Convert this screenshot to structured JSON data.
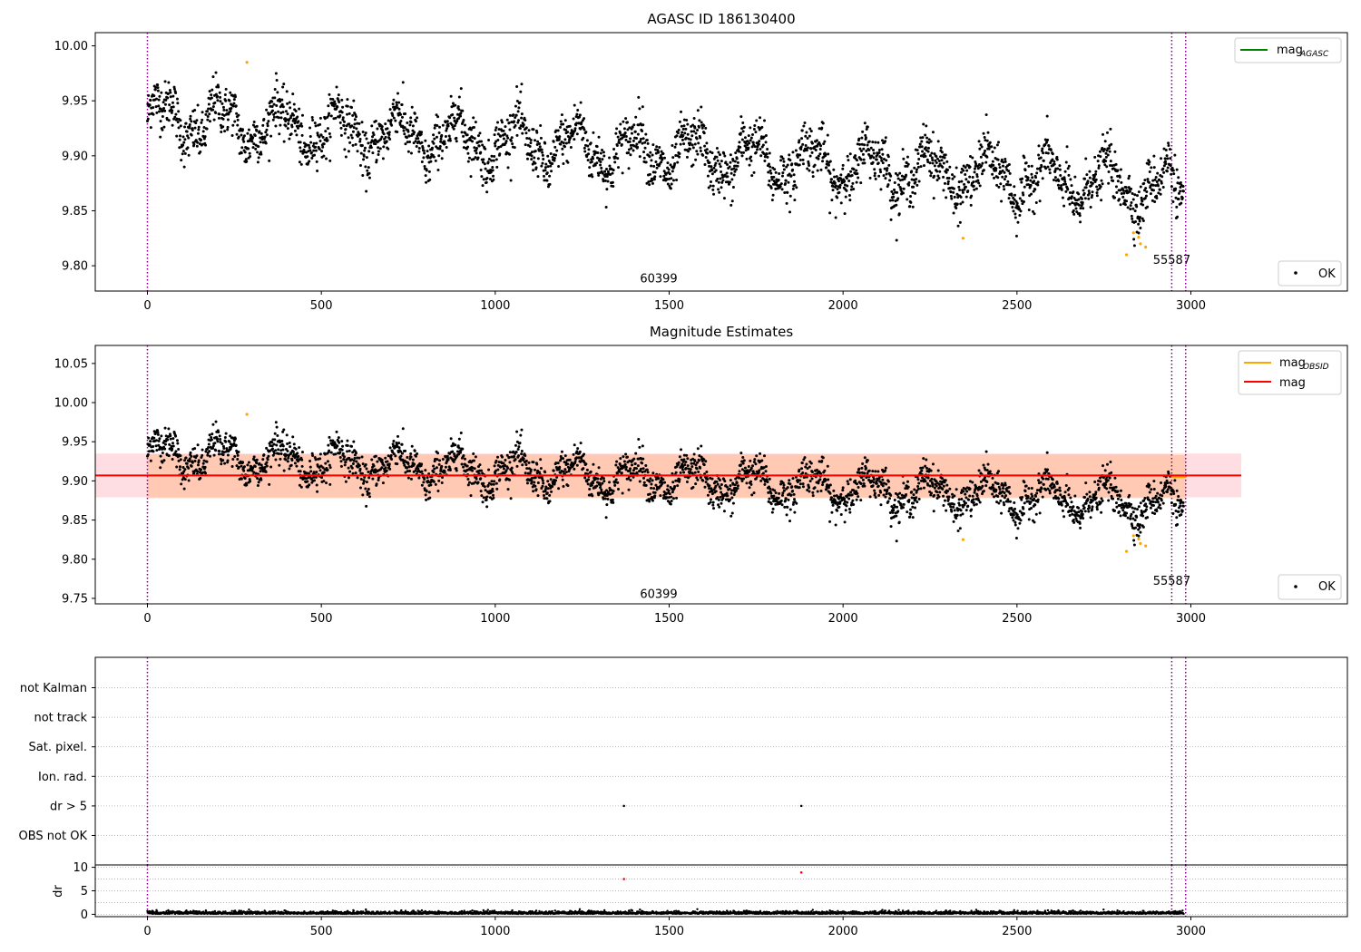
{
  "figure": {
    "top_title": "AGASC ID 186130400",
    "middle_title": "Magnitude Estimates"
  },
  "chart_data": [
    {
      "type": "scatter",
      "title": "AGASC ID 186130400",
      "xlabel": "",
      "ylabel": "",
      "xlim": [
        -150,
        3450
      ],
      "ylim": [
        9.777,
        10.012
      ],
      "xticks": [
        0,
        500,
        1000,
        1500,
        2000,
        2500,
        3000
      ],
      "yticks": [
        9.8,
        9.85,
        9.9,
        9.95,
        10.0
      ],
      "ytick_labels": [
        "9.80",
        "9.85",
        "9.90",
        "9.95",
        "10.00"
      ],
      "grid": false,
      "obsid_boundaries_x": [
        0,
        2945,
        2985
      ],
      "annotations": [
        {
          "text": "60399",
          "x": 1470,
          "y": 9.788
        },
        {
          "text": "55587",
          "x": 2945,
          "y": 9.805
        }
      ],
      "legend_top": {
        "position": "top-right",
        "entries": [
          {
            "label": "mag",
            "sub": "AGASC",
            "color": "#008000"
          }
        ]
      },
      "legend_bottom": {
        "position": "bottom-right",
        "entries": [
          {
            "label": "OK",
            "marker": "dot",
            "color": "#000000"
          }
        ]
      },
      "series": [
        {
          "name": "OK",
          "color": "#000000",
          "n_points": 2980,
          "x_range": [
            0,
            2985
          ],
          "note_points": "dense per-sample magnitude estimates, ~9.83–9.98"
        },
        {
          "color": "#ffa500",
          "points": [
            [
              286,
              9.985
            ],
            [
              2345,
              9.825
            ],
            [
              2815,
              9.81
            ],
            [
              2835,
              9.83
            ],
            [
              2850,
              9.826
            ],
            [
              2855,
              9.82
            ],
            [
              2870,
              9.817
            ]
          ]
        }
      ]
    },
    {
      "type": "scatter",
      "title": "Magnitude Estimates",
      "xlim": [
        -150,
        3450
      ],
      "ylim": [
        9.743,
        10.073
      ],
      "xticks": [
        0,
        500,
        1000,
        1500,
        2000,
        2500,
        3000
      ],
      "yticks": [
        9.75,
        9.8,
        9.85,
        9.9,
        9.95,
        10.0,
        10.05
      ],
      "ytick_labels": [
        "9.75",
        "9.80",
        "9.85",
        "9.90",
        "9.95",
        "10.00",
        "10.05"
      ],
      "grid": false,
      "obsid_boundaries_x": [
        0,
        2945,
        2985
      ],
      "annotations": [
        {
          "text": "60399",
          "x": 1470,
          "y": 9.755
        },
        {
          "text": "55587",
          "x": 2945,
          "y": 9.772
        }
      ],
      "mean_mag": {
        "value": 9.907,
        "x_range": [
          -150,
          3145
        ],
        "band": [
          9.879,
          9.935
        ],
        "band_color": "#ffd6dc"
      },
      "obsid_mag": [
        {
          "x_range": [
            0,
            2945
          ],
          "value": 9.907,
          "band": [
            9.878,
            9.934
          ]
        },
        {
          "x_range": [
            2945,
            2985
          ],
          "value": 9.905,
          "band": [
            9.876,
            9.933
          ]
        }
      ],
      "legend_top": {
        "position": "top-right",
        "entries": [
          {
            "label": "mag",
            "sub": "OBSID",
            "color": "#ffa500"
          },
          {
            "label": "mag",
            "sub": "",
            "color": "#ff0000"
          }
        ]
      },
      "legend_bottom": {
        "position": "bottom-right",
        "entries": [
          {
            "label": "OK",
            "marker": "dot",
            "color": "#000000"
          }
        ]
      }
    },
    {
      "type": "scatter",
      "title": "",
      "categories": [
        "OBS not OK",
        "dr > 5",
        "Ion. rad.",
        "Sat. pixel.",
        "not track",
        "not Kalman"
      ],
      "flag_points": [
        {
          "category": "dr > 5",
          "x": 1370
        },
        {
          "category": "dr > 5",
          "x": 1880
        }
      ],
      "obsid_boundaries_x": [
        0,
        2945,
        2985
      ],
      "grid": "horizontal dotted"
    },
    {
      "type": "scatter",
      "title": "",
      "ylabel": "dr",
      "xlim": [
        -150,
        3450
      ],
      "ylim": [
        -0.5,
        10.5
      ],
      "xticks": [
        0,
        500,
        1000,
        1500,
        2000,
        2500,
        3000
      ],
      "yticks": [
        0,
        5,
        10
      ],
      "ytick_labels": [
        "0",
        "5",
        "10"
      ],
      "obsid_boundaries_x": [
        0,
        2945,
        2985
      ],
      "series": [
        {
          "name": "dr",
          "color": "#000000",
          "note_points": "dr mostly 0–1"
        },
        {
          "color": "#ff0000",
          "points": [
            [
              1370,
              7.5
            ],
            [
              1880,
              8.9
            ]
          ]
        }
      ]
    }
  ]
}
